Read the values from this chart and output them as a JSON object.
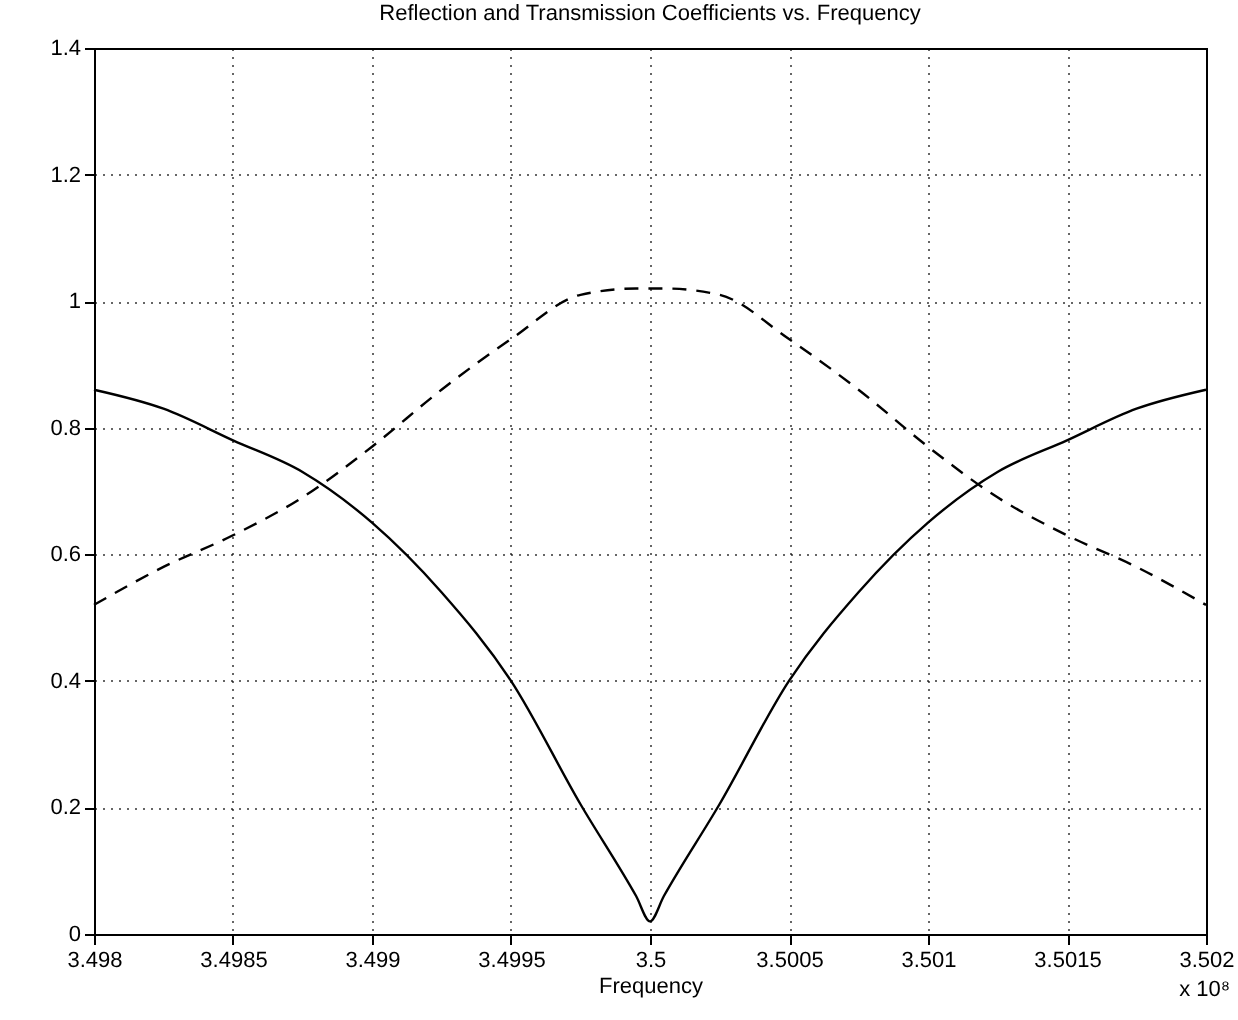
{
  "chart_data": {
    "type": "line",
    "title": "Reflection and Transmission Coefficients vs. Frequency",
    "xlabel": "Frequency",
    "x": [
      3.498,
      3.49825,
      3.4985,
      3.49875,
      3.499,
      3.49925,
      3.4995,
      3.49975,
      3.49995,
      3.5,
      3.50005,
      3.50025,
      3.5005,
      3.50075,
      3.501,
      3.50125,
      3.5015,
      3.50175,
      3.502
    ],
    "series": [
      {
        "color": "#000000",
        "line_style": "solid",
        "values": [
          0.86,
          0.83,
          0.78,
          0.73,
          0.65,
          0.54,
          0.4,
          0.205,
          0.06,
          0.02,
          0.06,
          0.205,
          0.4,
          0.54,
          0.65,
          0.73,
          0.78,
          0.83,
          0.86
        ]
      },
      {
        "color": "#000000",
        "line_style": "dashed",
        "values": [
          0.52,
          0.58,
          0.63,
          0.69,
          0.77,
          0.86,
          0.94,
          1.01,
          1.02,
          1.02,
          1.02,
          1.01,
          0.94,
          0.86,
          0.77,
          0.69,
          0.63,
          0.58,
          0.52
        ]
      }
    ],
    "xlim": [
      3.498,
      3.502
    ],
    "xticks": [
      3.498,
      3.4985,
      3.499,
      3.4995,
      3.5,
      3.5005,
      3.501,
      3.5015,
      3.502
    ],
    "ylim": [
      0,
      1.4
    ],
    "yticks": [
      0,
      0.2,
      0.4,
      0.6,
      0.8,
      1,
      1.2,
      1.4
    ],
    "annotations": [
      "x 10⁸"
    ],
    "grid": true,
    "legend": false,
    "marker": "none"
  }
}
